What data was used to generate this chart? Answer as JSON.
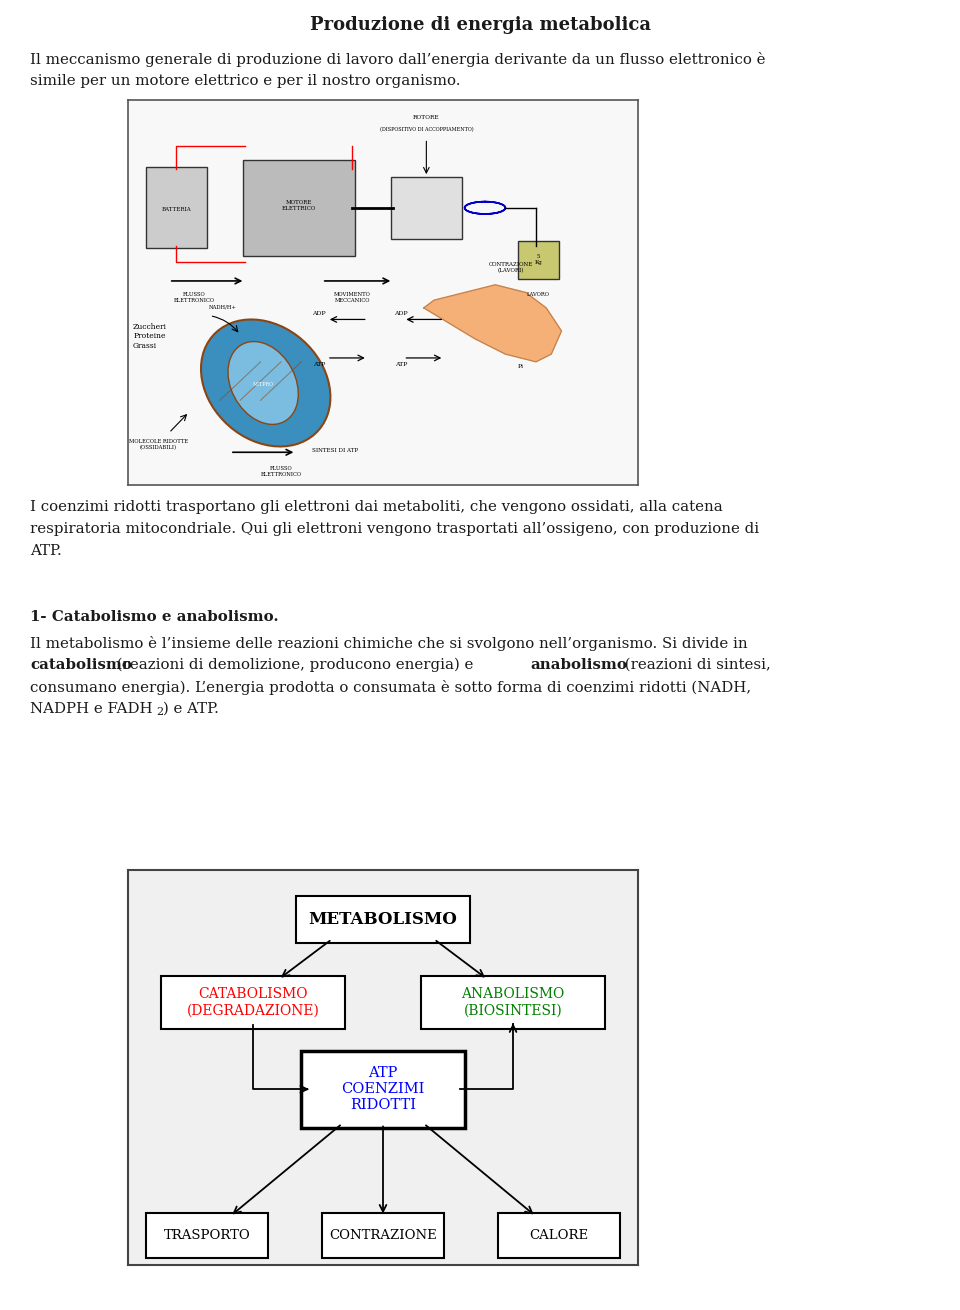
{
  "title": "Produzione di energia metabolica",
  "para1_line1": "Il meccanismo generale di produzione di lavoro dall’energia derivante da un flusso elettronico è",
  "para1_line2": "simile per un motore elettrico e per il nostro organismo.",
  "para2_line1": "I coenzimi ridotti trasportano gli elettroni dai metaboliti, che vengono ossidati, alla catena",
  "para2_line2": "respiratoria mitocondriale. Qui gli elettroni vengono trasportati all’ossigeno, con produzione di",
  "para2_line3": "ATP.",
  "section_title": "1- Catabolismo e anabolismo.",
  "para3_line1": "Il metabolismo è l’insieme delle reazioni chimiche che si svolgono nell’organismo. Si divide in",
  "para3_line2a": "catabolismo",
  "para3_line2b": " (reazioni di demolizione, producono energia) e ",
  "para3_line2c": "anabolismo",
  "para3_line2d": " (reazioni di sintesi,",
  "para3_line3": "consumano energia). L’energia prodotta o consumata è sotto forma di coenzimi ridotti (NADH,",
  "para3_line4a": "NADPH e FADH",
  "para3_line4b": "2",
  "para3_line4c": ") e ATP.",
  "bg_color": "#ffffff",
  "text_color": "#1a1a1a",
  "font_size_title": 13,
  "font_size_body": 10.8,
  "font_size_bold": 10.8
}
